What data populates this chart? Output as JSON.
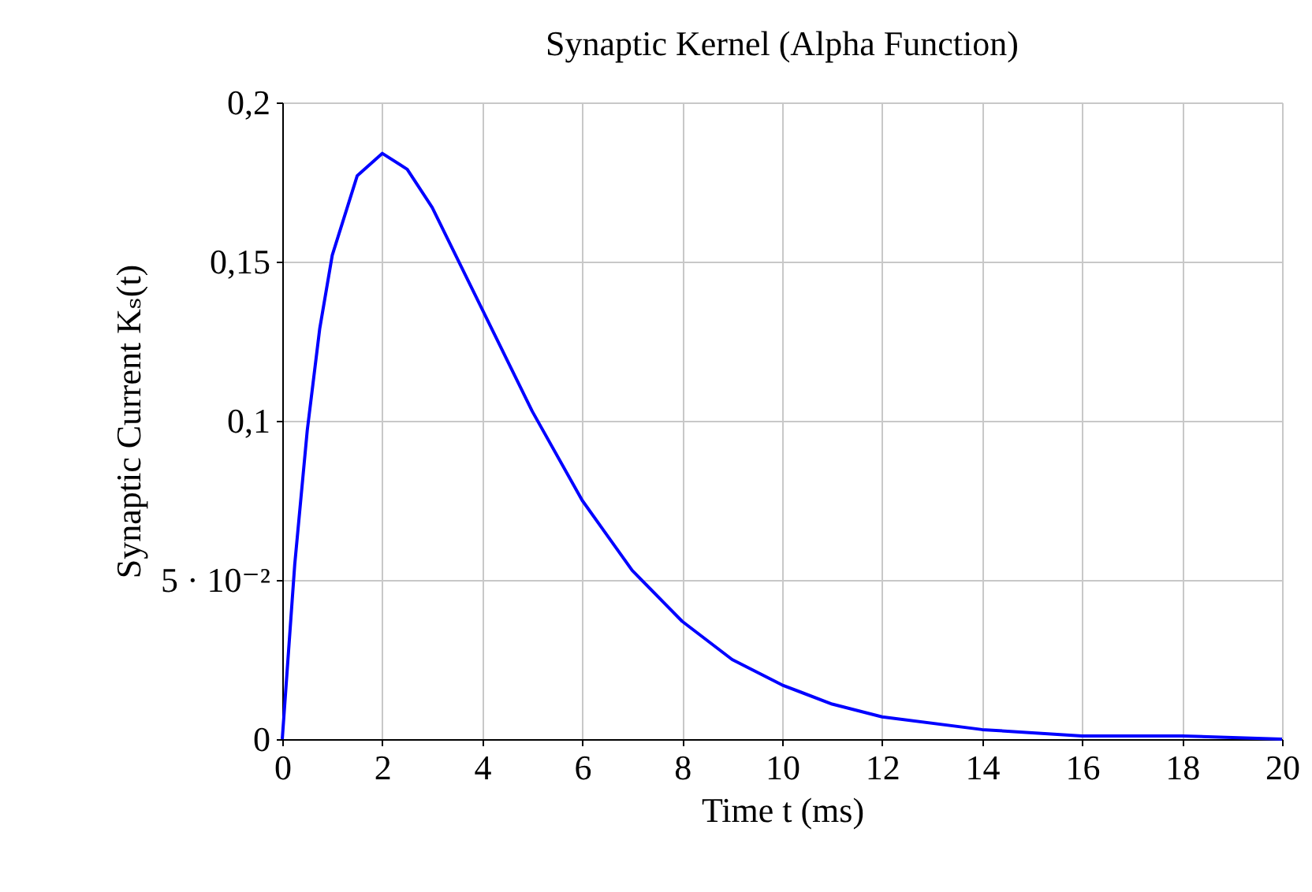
{
  "chart_data": {
    "type": "line",
    "title": "Synaptic Kernel (Alpha Function)",
    "xlabel": "Time t (ms)",
    "ylabel": "Synaptic Current Kₛ(t)",
    "series": [
      {
        "color": "#0000ff",
        "x": [
          0,
          0.25,
          0.5,
          0.75,
          1,
          1.5,
          2,
          2.5,
          3,
          4,
          5,
          6,
          7,
          8,
          9,
          10,
          11,
          12,
          14,
          16,
          18,
          20
        ],
        "values": [
          0,
          0.055,
          0.097,
          0.129,
          0.152,
          0.177,
          0.184,
          0.179,
          0.167,
          0.135,
          0.103,
          0.075,
          0.053,
          0.037,
          0.025,
          0.017,
          0.011,
          0.007,
          0.003,
          0.001,
          0.001,
          0
        ]
      }
    ],
    "xlim": [
      0,
      20
    ],
    "xticks": [
      0,
      2,
      4,
      6,
      8,
      10,
      12,
      14,
      16,
      18,
      20
    ],
    "ylim": [
      0,
      0.2
    ],
    "yticks": [
      0,
      {
        "value": 0.05,
        "label": "5 · 10⁻²"
      },
      {
        "value": 0.1,
        "label": "0,1"
      },
      {
        "value": 0.15,
        "label": "0,15"
      },
      {
        "value": 0.2,
        "label": "0,2"
      }
    ],
    "grid": true,
    "marker": "none",
    "line_style": "solid"
  }
}
